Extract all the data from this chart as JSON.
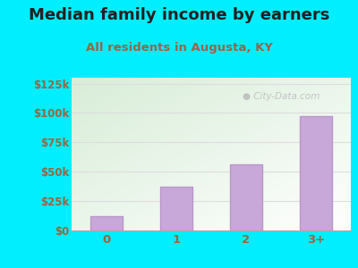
{
  "title": "Median family income by earners",
  "subtitle": "All residents in Augusta, KY",
  "categories": [
    "0",
    "1",
    "2",
    "3+"
  ],
  "values": [
    12500,
    37500,
    56000,
    97500
  ],
  "bar_color": "#c8a8d8",
  "bar_edgecolor": "#b898c8",
  "background_outer": "#00eeff",
  "plot_bg_topleft": "#d8edd8",
  "plot_bg_topright": "#f0f8f0",
  "plot_bg_bottomright": "#ffffff",
  "yticks": [
    0,
    25000,
    50000,
    75000,
    100000,
    125000
  ],
  "ytick_labels": [
    "$0",
    "$25k",
    "$50k",
    "$75k",
    "$100k",
    "$125k"
  ],
  "ylim": [
    0,
    130000
  ],
  "title_fontsize": 13,
  "subtitle_fontsize": 9.5,
  "title_color": "#222222",
  "subtitle_color": "#996644",
  "tick_color": "#996644",
  "watermark_text": "City-Data.com",
  "watermark_color": "#bbbbbb",
  "grid_color": "#dddddd"
}
